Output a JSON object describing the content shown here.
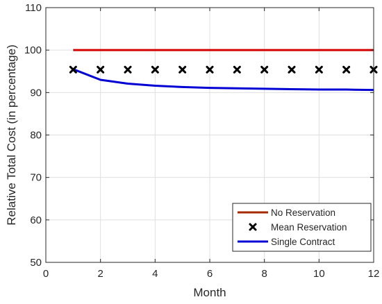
{
  "chart_data": {
    "type": "line",
    "xlabel": "Month",
    "ylabel": "Relative Total Cost (in percentage)",
    "xlim": [
      0,
      12
    ],
    "ylim": [
      50,
      110
    ],
    "xticks": [
      0,
      2,
      4,
      6,
      8,
      10,
      12
    ],
    "yticks": [
      50,
      60,
      70,
      80,
      90,
      100,
      110
    ],
    "grid": true,
    "legend_position": "bottom-right",
    "x": [
      1,
      2,
      3,
      4,
      5,
      6,
      7,
      8,
      9,
      10,
      11,
      12
    ],
    "series": [
      {
        "name": "No Reservation",
        "style": "line",
        "color": "#d40000",
        "values": [
          100,
          100,
          100,
          100,
          100,
          100,
          100,
          100,
          100,
          100,
          100,
          100
        ]
      },
      {
        "name": "Mean Reservation",
        "style": "marker-x",
        "color": "#000000",
        "values": [
          95.4,
          95.4,
          95.4,
          95.4,
          95.4,
          95.4,
          95.4,
          95.4,
          95.4,
          95.4,
          95.4,
          95.4
        ]
      },
      {
        "name": "Single Contract",
        "style": "line",
        "color": "#0000d4",
        "values": [
          95.5,
          93.0,
          92.1,
          91.6,
          91.3,
          91.1,
          91.0,
          90.9,
          90.8,
          90.7,
          90.7,
          90.6
        ]
      }
    ],
    "legend_line_color_no_reservation": "#a52a00"
  }
}
